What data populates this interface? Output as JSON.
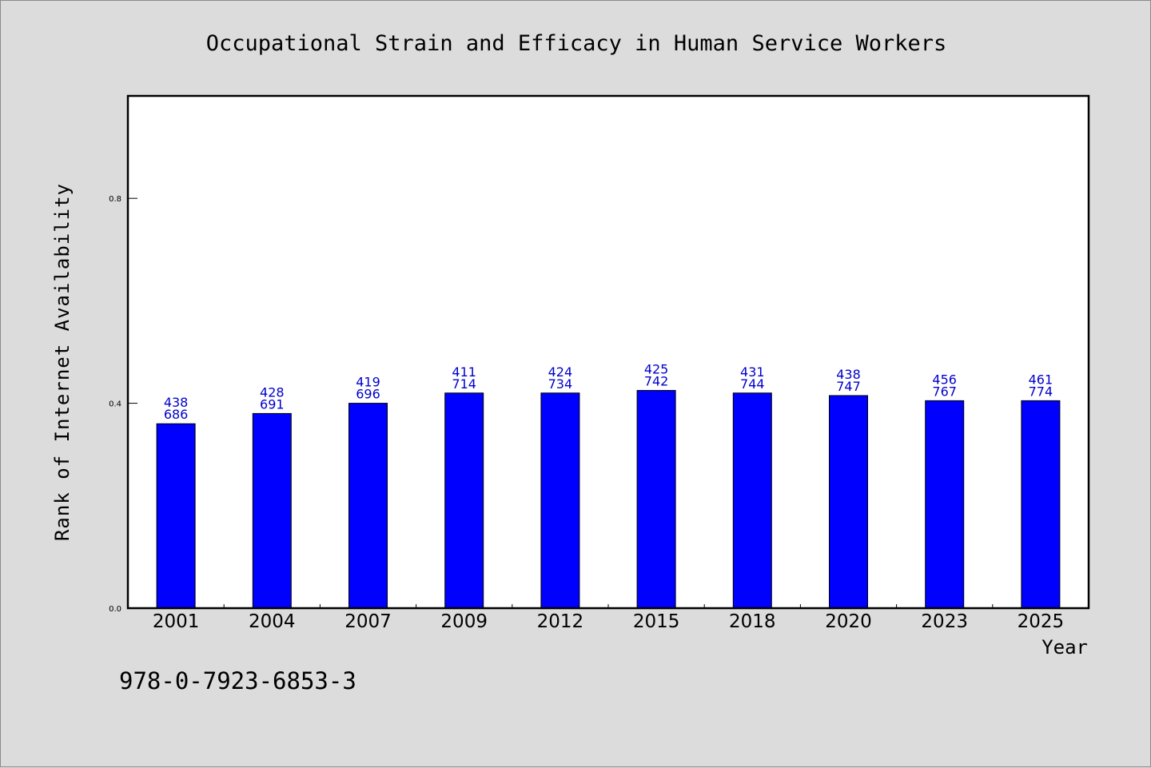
{
  "chart_data": {
    "type": "bar",
    "title": "Occupational Strain and Efficacy in Human Service Workers",
    "xlabel": "Year",
    "ylabel": "Rank of Internet Availability",
    "ylim": [
      0,
      1.0
    ],
    "yticks": [
      "0.0",
      "0.4",
      "0.8"
    ],
    "grid": false,
    "categories": [
      "2001",
      "2004",
      "2007",
      "2009",
      "2012",
      "2015",
      "2018",
      "2020",
      "2023",
      "2025"
    ],
    "values": [
      0.36,
      0.38,
      0.4,
      0.42,
      0.42,
      0.425,
      0.42,
      0.415,
      0.405,
      0.405
    ],
    "bar_labels_top": [
      "438",
      "428",
      "419",
      "411",
      "424",
      "425",
      "431",
      "438",
      "456",
      "461"
    ],
    "bar_labels_bottom": [
      "686",
      "691",
      "696",
      "714",
      "734",
      "742",
      "744",
      "747",
      "767",
      "774"
    ],
    "bar_color": "#0000ff",
    "label_color": "#0000cc"
  },
  "footnote": "978-0-7923-6853-3"
}
